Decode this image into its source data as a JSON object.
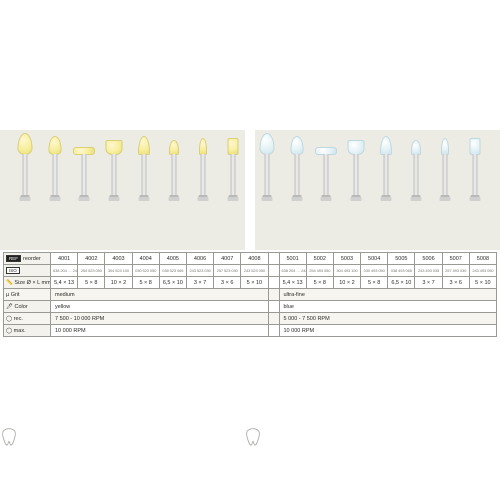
{
  "variants": {
    "yellow": {
      "fillClass": "yc"
    },
    "blue": {
      "fillClass": "bc"
    }
  },
  "shapes": [
    "flame",
    "drop",
    "disc",
    "cup",
    "cone",
    "pointS",
    "needle",
    "cyl"
  ],
  "labels": {
    "ref": "REF",
    "reorder": "reorder",
    "iso": "ISO",
    "size": "Size Ø × L mm",
    "grit": "Grit",
    "color": "Color",
    "rec": "rec.",
    "max": "max."
  },
  "groups": [
    {
      "key": "yellow",
      "iso_prefix": "638 204  …",
      "ref": [
        "4001",
        "4002",
        "4003",
        "4004",
        "4005",
        "4006",
        "4007",
        "4008"
      ],
      "iso": [
        "243 523 055",
        "254 523 050",
        "304 523 100",
        "030 523 050",
        "038 523 065",
        "243 523 035",
        "257 523 030",
        "243 523 050"
      ],
      "size": [
        "5,4 × 13",
        "5 × 8",
        "10 × 2",
        "5 × 8",
        "6,5 × 10",
        "3 × 7",
        "3 × 6",
        "5 × 10"
      ],
      "grit": "medium",
      "color": "yellow",
      "rec": "7 500 - 10 000 RPM",
      "max": "10 000 RPM"
    },
    {
      "key": "blue",
      "iso_prefix": "638 204  …",
      "ref": [
        "5001",
        "5002",
        "5003",
        "5004",
        "5005",
        "5006",
        "5007",
        "5008"
      ],
      "iso": [
        "243 493 055",
        "254 493 050",
        "304 493 100",
        "030 493 050",
        "038 493 065",
        "243 493 035",
        "257 493 030",
        "243 493 050"
      ],
      "size": [
        "5,4 × 13",
        "5 × 8",
        "10 × 2",
        "5 × 8",
        "6,5 × 10",
        "3 × 7",
        "3 × 6",
        "5 × 10"
      ],
      "grit": "ultra-fine",
      "color": "blue",
      "rec": "5 000 - 7 500 RPM",
      "max": "10 000 RPM"
    }
  ],
  "colors": {
    "band": "#ecebe4"
  }
}
